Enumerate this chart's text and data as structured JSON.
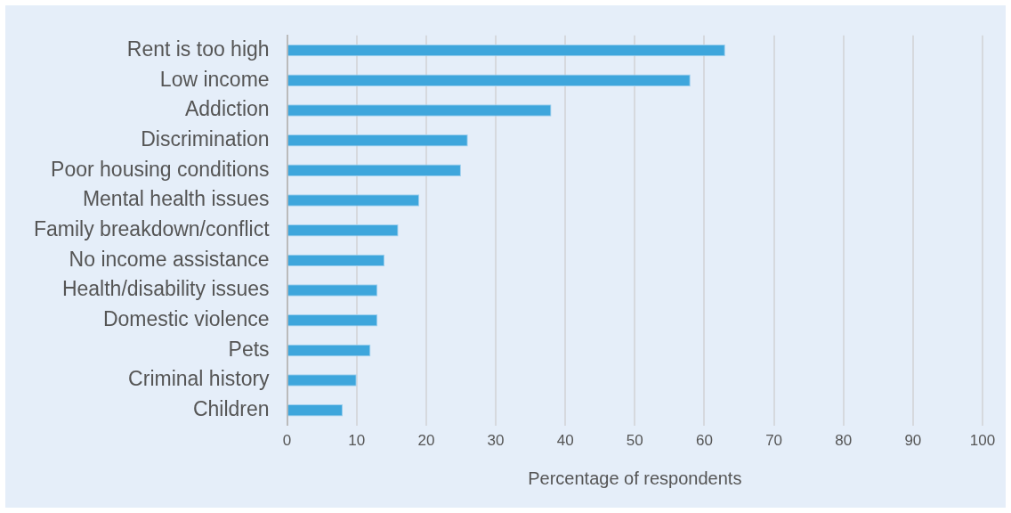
{
  "chart_data": {
    "type": "bar",
    "orientation": "horizontal",
    "xlabel": "Percentage of respondents",
    "categories": [
      "Rent is too high",
      "Low income",
      "Addiction",
      "Discrimination",
      "Poor housing conditions",
      "Mental health issues",
      "Family breakdown/conflict",
      "No income assistance",
      "Health/disability issues",
      "Domestic violence",
      "Pets",
      "Criminal history",
      "Children"
    ],
    "values": [
      63,
      58,
      38,
      26,
      25,
      19,
      16,
      14,
      13,
      13,
      12,
      10,
      8
    ],
    "color": "#3ea6dc",
    "xlim": [
      0,
      100
    ],
    "xticks": [
      0,
      10,
      20,
      30,
      40,
      50,
      60,
      70,
      80,
      90,
      100
    ],
    "grid": "x",
    "legend": false
  }
}
